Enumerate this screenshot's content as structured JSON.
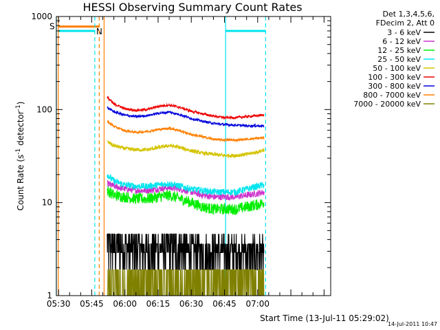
{
  "chart_data": {
    "type": "line",
    "title": "HESSI Observing Summary Count Rates",
    "xlabel": "Start Time (13-Jul-11 05:29:02)",
    "ylabel_parts": [
      "Count Rate (s",
      "-1",
      " detector",
      "-1",
      ")"
    ],
    "yscale": "log",
    "ylim": [
      1,
      1000
    ],
    "ytick_values": [
      1,
      10,
      100,
      1000
    ],
    "ytick_labels": [
      "1",
      "10",
      "100",
      "1000"
    ],
    "xlim": [
      329.03,
      453.0
    ],
    "xtick_values": [
      330,
      345,
      360,
      375,
      390,
      405,
      420
    ],
    "xtick_labels": [
      "05:30",
      "05:45",
      "06:00",
      "06:15",
      "06:30",
      "06:45",
      "07:00"
    ],
    "grid": false,
    "legend_position": "right, outside plot",
    "legend_header": [
      "Det 1,3,4,5,6,",
      "FDecim 2, Att 0"
    ],
    "series": [
      {
        "name": "3 - 6 keV",
        "color": "#000000",
        "x": [
          352,
          355,
          360,
          365,
          370,
          375,
          380,
          385,
          390,
          395,
          400,
          405,
          410,
          415,
          420,
          423
        ],
        "y": [
          4.0,
          3.5,
          3.2,
          3.0,
          2.8,
          3.0,
          3.2,
          3.0,
          2.7,
          2.6,
          2.6,
          2.6,
          2.5,
          2.5,
          2.5,
          2.5
        ]
      },
      {
        "name": "6 - 12 keV",
        "color": "#cc33cc",
        "x": [
          352,
          355,
          360,
          365,
          370,
          375,
          380,
          385,
          390,
          395,
          400,
          405,
          410,
          415,
          420,
          423
        ],
        "y": [
          16,
          15,
          14,
          13.5,
          13.5,
          14,
          14.5,
          14,
          13,
          12,
          11.5,
          11.5,
          11.5,
          12,
          12.5,
          13
        ]
      },
      {
        "name": "12 - 25 keV",
        "color": "#00ee00",
        "x": [
          352,
          355,
          360,
          365,
          370,
          375,
          380,
          385,
          390,
          395,
          400,
          405,
          410,
          415,
          420,
          423
        ],
        "y": [
          13.5,
          12,
          11.5,
          11,
          11,
          11.5,
          12,
          11,
          10,
          9,
          8.5,
          8.5,
          8.5,
          9,
          9.5,
          10
        ]
      },
      {
        "name": "25 - 50 keV",
        "color": "#00e5ee",
        "x": [
          352,
          355,
          360,
          365,
          370,
          375,
          380,
          385,
          390,
          395,
          400,
          405,
          410,
          415,
          420,
          423
        ],
        "y": [
          20,
          17,
          15.5,
          15,
          15,
          15.5,
          16,
          15,
          14,
          13.5,
          13,
          13,
          13,
          14,
          15,
          15.5
        ]
      },
      {
        "name": "50 - 100 keV",
        "color": "#d4c400",
        "x": [
          352,
          355,
          360,
          365,
          370,
          375,
          380,
          385,
          390,
          395,
          400,
          405,
          410,
          415,
          420,
          423
        ],
        "y": [
          45,
          41,
          38,
          37,
          37,
          39,
          41,
          39,
          36,
          34,
          33,
          32,
          32,
          33,
          35,
          37
        ]
      },
      {
        "name": "100 - 300 keV",
        "color": "#ee0000",
        "x": [
          352,
          355,
          360,
          365,
          370,
          375,
          380,
          385,
          390,
          395,
          400,
          405,
          410,
          415,
          420,
          423
        ],
        "y": [
          135,
          115,
          102,
          98,
          100,
          108,
          112,
          105,
          96,
          90,
          85,
          82,
          82,
          84,
          86,
          88
        ]
      },
      {
        "name": "300 - 800 keV",
        "color": "#0000dd",
        "x": [
          352,
          355,
          360,
          365,
          370,
          375,
          380,
          385,
          390,
          395,
          400,
          405,
          410,
          415,
          420,
          423
        ],
        "y": [
          105,
          95,
          87,
          84,
          86,
          91,
          94,
          88,
          80,
          75,
          71,
          69,
          68,
          67,
          67,
          66
        ]
      },
      {
        "name": "800 - 7000 keV",
        "color": "#ff7f00",
        "x": [
          352,
          355,
          360,
          365,
          370,
          375,
          380,
          385,
          390,
          395,
          400,
          405,
          410,
          415,
          420,
          423
        ],
        "y": [
          75,
          66,
          59,
          57,
          58,
          61,
          63,
          59,
          54,
          51,
          48,
          47,
          47,
          48,
          49,
          50
        ]
      },
      {
        "name": "7000 - 20000 keV",
        "color": "#808000",
        "x": [
          352,
          355,
          360,
          365,
          370,
          375,
          380,
          385,
          390,
          395,
          400,
          405,
          410,
          415,
          420,
          423
        ],
        "y": [
          2.0,
          2.0,
          1.8,
          1.6,
          1.6,
          2.0,
          2.0,
          1.4,
          1.8,
          2.0,
          2.0,
          2.0,
          2.0,
          2.0,
          2.0,
          2.0
        ]
      }
    ],
    "flags": [
      {
        "name": "S",
        "color": "#ff7f00",
        "y": 780,
        "x_start": 329.9,
        "x_end": 348.4
      },
      {
        "name": "N",
        "color": "#00e5ee",
        "y": 700,
        "x_start": 329.9,
        "x_end": 346.4
      },
      {
        "name": "",
        "color": "#00e5ee",
        "y": 700,
        "x_start": 405.5,
        "x_end": 423.6
      }
    ],
    "vertical_lines": [
      {
        "x": 329.9,
        "color": "#ff7f00",
        "style": "solid"
      },
      {
        "x": 329.0,
        "color": "#00e5ee",
        "style": "solid"
      },
      {
        "x": 346.4,
        "color": "#00e5ee",
        "style": "dashed"
      },
      {
        "x": 348.4,
        "color": "#ff7f00",
        "style": "dashed"
      },
      {
        "x": 350.6,
        "color": "#ff7f00",
        "style": "solid"
      },
      {
        "x": 405.5,
        "color": "#00e5ee",
        "style": "solid"
      },
      {
        "x": 423.6,
        "color": "#00e5ee",
        "style": "dashed"
      }
    ]
  },
  "footer": {
    "timestamp": "14-Jul-2011 10:47"
  }
}
